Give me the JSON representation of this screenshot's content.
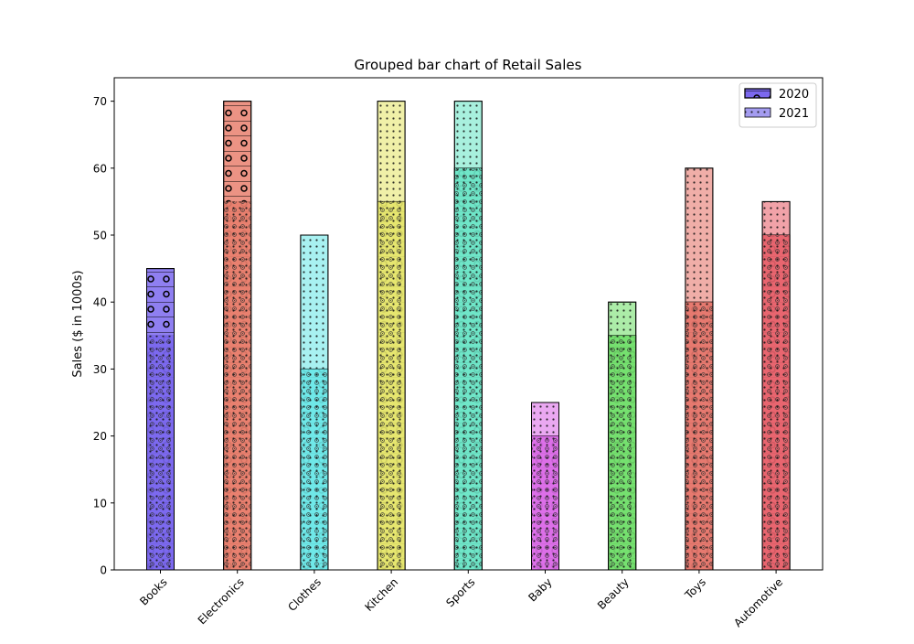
{
  "chart_data": {
    "type": "bar",
    "title": "Grouped bar chart of Retail Sales",
    "xlabel": "",
    "ylabel": "Sales ($ in 1000s)",
    "ylim": [
      0,
      73.5
    ],
    "yticks": [
      0,
      10,
      20,
      30,
      40,
      50,
      60,
      70
    ],
    "grid": false,
    "legend_position": "top-right",
    "categories": [
      "Books",
      "Electronics",
      "Clothes",
      "Kitchen",
      "Sports",
      "Baby",
      "Beauty",
      "Toys",
      "Automotive"
    ],
    "category_colors": [
      "#7b68ee",
      "#e9806e",
      "#6ee8e8",
      "#e6e66e",
      "#6ee6c8",
      "#dc6ee8",
      "#74e06e",
      "#e6786e",
      "#e8646e"
    ],
    "series": [
      {
        "name": "2020",
        "values": [
          45,
          70,
          30,
          55,
          60,
          20,
          35,
          40,
          50
        ],
        "legend_color": "#7b68ee"
      },
      {
        "name": "2021",
        "values": [
          35,
          55,
          50,
          70,
          70,
          25,
          40,
          60,
          55
        ],
        "legend_color": "#a49cf0"
      }
    ]
  }
}
